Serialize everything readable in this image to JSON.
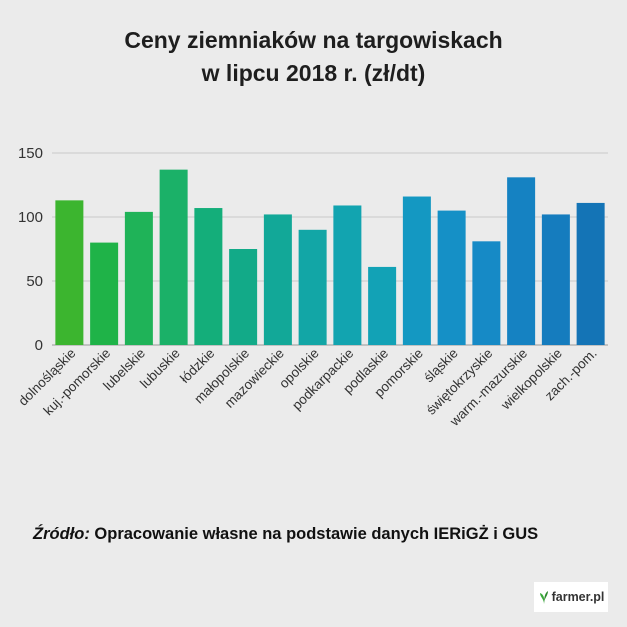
{
  "title": {
    "line1": "Ceny ziemniaków na targowiskach",
    "line2": "w  lipcu 2018 r. (zł/dt)"
  },
  "chart_data": {
    "type": "bar",
    "title": "Ceny ziemniaków na targowiskach w  lipcu 2018 r. (zł/dt)",
    "categories": [
      "dolnośląskie",
      "kuj.-pomorskie",
      "lubelskie",
      "lubuskie",
      "łódzkie",
      "małopolskie",
      "mazowieckie",
      "opolskie",
      "podkarpackie",
      "podlaskie",
      "pomorskie",
      "śląskie",
      "świętokrzyskie",
      "warm.-mazurskie",
      "wielkopolskie",
      "zach.-pom."
    ],
    "values": [
      113,
      80,
      104,
      137,
      107,
      75,
      102,
      90,
      109,
      61,
      116,
      105,
      81,
      131,
      102,
      111
    ],
    "colors": [
      "#3cb52f",
      "#1fb348",
      "#1fb358",
      "#1bb168",
      "#14ae7a",
      "#12aa88",
      "#12a898",
      "#12a6a6",
      "#12a4b0",
      "#12a2b6",
      "#1498c2",
      "#1590c6",
      "#168ac6",
      "#1582c2",
      "#157cbe",
      "#1474b6"
    ],
    "yticks": [
      0,
      50,
      100,
      150
    ],
    "ylim": [
      0,
      150
    ],
    "grid": true
  },
  "source": {
    "label": "Źródło:",
    "text": " Opracowanie własne na podstawie danych IERiGŻ  i GUS"
  },
  "logo": {
    "text": "farmer.pl"
  }
}
